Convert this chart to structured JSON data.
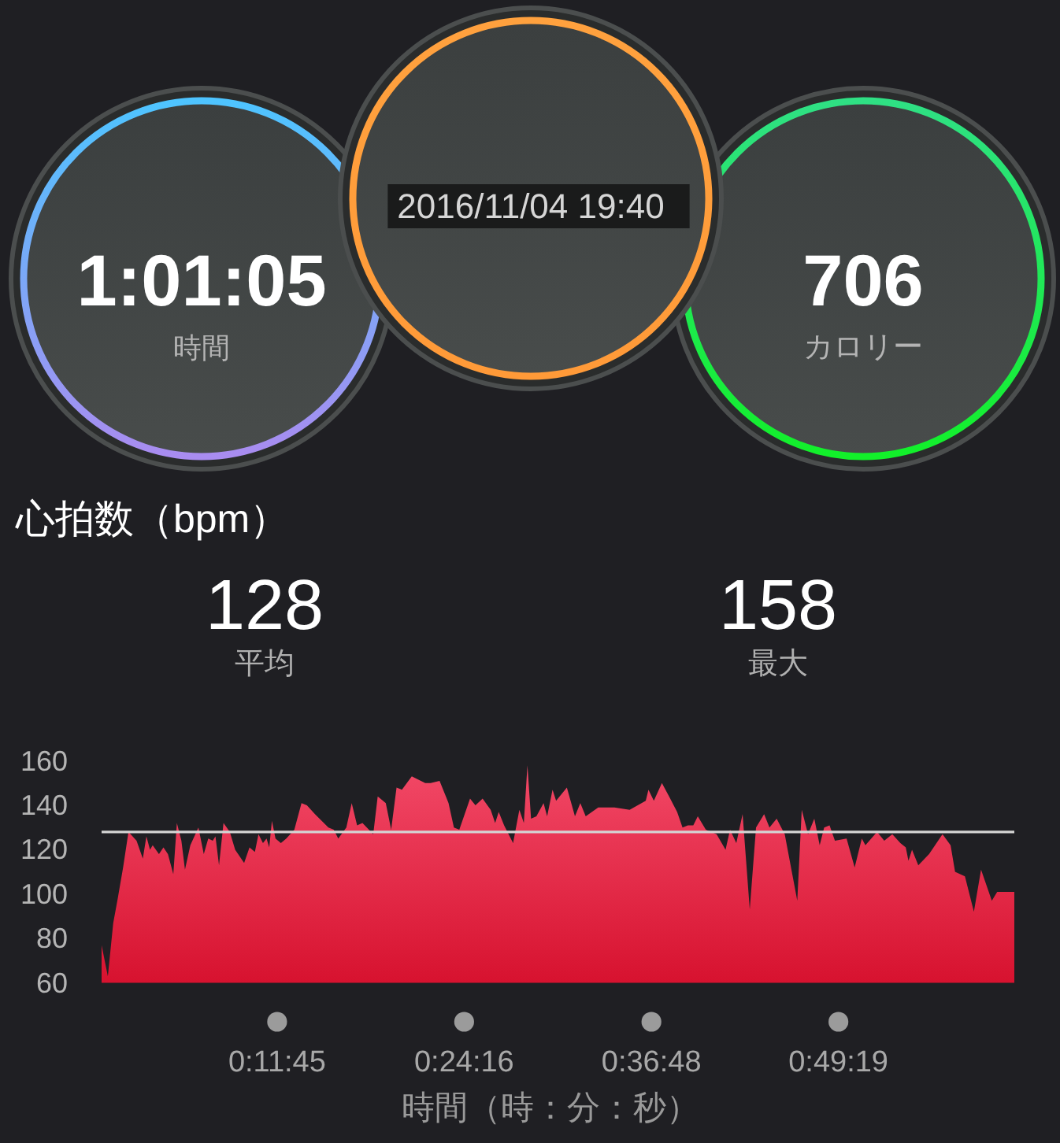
{
  "chart_data": [
    {
      "type": "other",
      "annotations": [
        "1:01:05",
        "時間",
        "2016/11/04 19:40",
        "706",
        "カロリー"
      ]
    },
    {
      "type": "area",
      "title": "心拍数（bpm）",
      "annotations": [
        "128",
        "平均",
        "158",
        "最大"
      ],
      "xlabel": "時間（時：分：秒）",
      "x": [
        0,
        0.007,
        0.013,
        0.018,
        0.024,
        0.03,
        0.039,
        0.046,
        0.05,
        0.054,
        0.057,
        0.064,
        0.069,
        0.074,
        0.08,
        0.084,
        0.089,
        0.093,
        0.099,
        0.108,
        0.114,
        0.119,
        0.124,
        0.127,
        0.131,
        0.136,
        0.143,
        0.149,
        0.159,
        0.165,
        0.171,
        0.175,
        0.18,
        0.184,
        0.187,
        0.19,
        0.194,
        0.2,
        0.206,
        0.215,
        0.223,
        0.229,
        0.238,
        0.253,
        0.259,
        0.264,
        0.273,
        0.279,
        0.285,
        0.291,
        0.303,
        0.308,
        0.317,
        0.323,
        0.329,
        0.335,
        0.346,
        0.361,
        0.367,
        0.377,
        0.387,
        0.393,
        0.399,
        0.411,
        0.417,
        0.425,
        0.434,
        0.439,
        0.443,
        0.449,
        0.459,
        0.466,
        0.471,
        0.475,
        0.479,
        0.485,
        0.493,
        0.497,
        0.503,
        0.507,
        0.519,
        0.528,
        0.534,
        0.54,
        0.554,
        0.572,
        0.589,
        0.607,
        0.61,
        0.616,
        0.625,
        0.633,
        0.642,
        0.648,
        0.654,
        0.66,
        0.665,
        0.674,
        0.686,
        0.696,
        0.701,
        0.708,
        0.715,
        0.723,
        0.73,
        0.739,
        0.745,
        0.753,
        0.762,
        0.776,
        0.781,
        0.788,
        0.795,
        0.801,
        0.806,
        0.812,
        0.818,
        0.831,
        0.84,
        0.848,
        0.852,
        0.865,
        0.873,
        0.882,
        0.891,
        0.897,
        0.9,
        0.904,
        0.911,
        0.923,
        0.938,
        0.947,
        0.952,
        0.963,
        0.973,
        0.981,
        0.993,
        0.999,
        1.0181
      ],
      "series": [
        {
          "color": "#e3213f",
          "values": [
            77,
            63,
            87,
            98,
            112,
            128,
            124,
            116,
            126,
            120,
            122,
            118,
            121,
            118,
            109,
            132,
            124,
            111,
            122,
            130,
            118,
            125,
            124,
            126,
            113,
            132,
            128,
            120,
            114,
            121,
            119,
            127,
            123,
            125,
            121,
            133,
            125,
            123,
            125,
            129,
            141,
            140,
            136,
            130,
            129,
            125,
            130,
            141,
            131,
            132,
            127,
            144,
            141,
            129,
            148,
            147,
            153,
            150,
            150,
            151,
            141,
            130,
            129,
            143,
            140,
            143,
            138,
            132,
            137,
            131,
            123,
            138,
            132,
            158,
            134,
            135,
            141,
            135,
            147,
            142,
            148,
            135,
            141,
            135,
            139,
            139,
            138,
            142,
            147,
            142,
            150,
            144,
            137,
            130,
            131,
            131,
            135,
            129,
            127,
            120,
            129,
            123,
            136,
            93,
            130,
            136,
            130,
            134,
            127,
            97,
            138,
            127,
            134,
            122,
            130,
            131,
            124,
            125,
            112,
            125,
            122,
            128,
            124,
            127,
            123,
            121,
            115,
            120,
            113,
            118,
            127,
            122,
            110,
            108,
            92,
            111,
            97,
            101,
            101
          ]
        }
      ],
      "xlim": [
        0,
        1.0181
      ],
      "xticks": [
        {
          "value": 0.1958,
          "label": "0:11:45"
        },
        {
          "value": 0.4044,
          "label": "0:24:16"
        },
        {
          "value": 0.6133,
          "label": "0:36:48"
        },
        {
          "value": 0.8219,
          "label": "0:49:19"
        }
      ],
      "ylim": [
        60,
        160
      ],
      "yticks": [
        60,
        80,
        100,
        120,
        140,
        160
      ],
      "ref_lines": [
        {
          "axis": "y",
          "value": 128,
          "color": "#d4d4d4"
        }
      ]
    }
  ]
}
